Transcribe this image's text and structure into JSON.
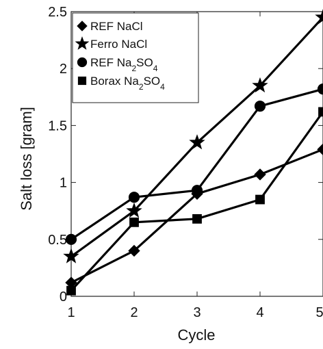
{
  "chart_data": {
    "type": "line",
    "xlabel": "Cycle",
    "ylabel": "Salt loss [gram]",
    "xlim": [
      1,
      5
    ],
    "ylim": [
      0,
      2.5
    ],
    "xticks": [
      1,
      2,
      3,
      4,
      5
    ],
    "xtick_labels": [
      "1",
      "2",
      "3",
      "4",
      "5"
    ],
    "yticks": [
      0,
      0.5,
      1,
      1.5,
      2,
      2.5
    ],
    "ytick_labels": [
      "0",
      "0.5",
      "1",
      "1.5",
      "2",
      "2.5"
    ],
    "grid": false,
    "legend_position": "top-left",
    "line_color": "#000000",
    "series": [
      {
        "name": "REF NaCl",
        "marker": "diamond",
        "x": [
          1,
          2,
          3,
          4,
          5
        ],
        "values": [
          0.12,
          0.4,
          0.9,
          1.07,
          1.29
        ]
      },
      {
        "name": "Ferro NaCl",
        "marker": "star",
        "x": [
          1,
          2,
          3,
          4,
          5
        ],
        "values": [
          0.35,
          0.75,
          1.35,
          1.85,
          2.45
        ]
      },
      {
        "name": "REF Na2SO4",
        "marker": "circle",
        "x": [
          1,
          2,
          3,
          4,
          5
        ],
        "values": [
          0.5,
          0.87,
          0.93,
          1.67,
          1.82
        ]
      },
      {
        "name": "Borax Na2SO4",
        "marker": "square",
        "x": [
          1,
          2,
          3,
          4,
          5
        ],
        "values": [
          0.05,
          0.65,
          0.68,
          0.85,
          1.62
        ]
      }
    ]
  }
}
